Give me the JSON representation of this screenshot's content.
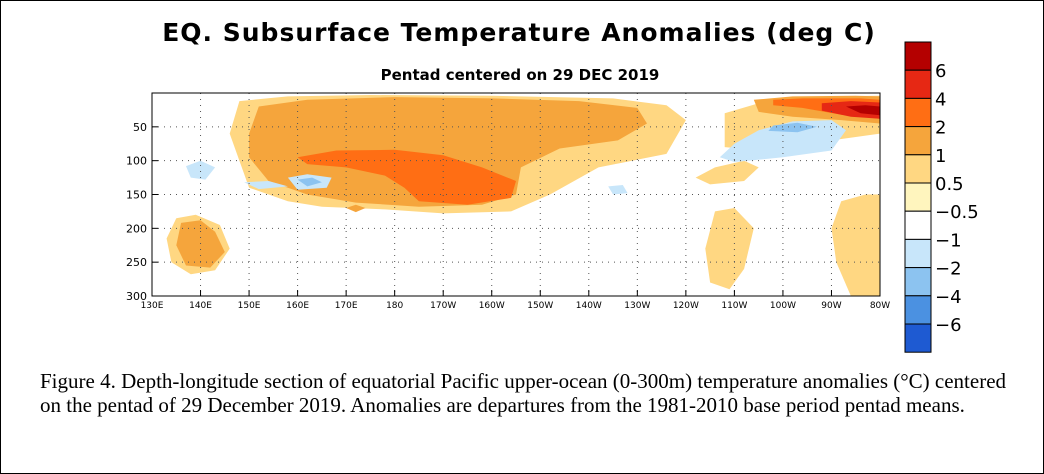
{
  "title": "EQ. Subsurface Temperature Anomalies (deg C)",
  "subtitle": "Pentad centered on 29 DEC 2019",
  "caption": "Figure 4. Depth-longitude section of equatorial Pacific upper-ocean (0-300m) temperature anomalies (°C) centered on the pentad of 29 December 2019. Anomalies are departures from the 1981-2010 base period pentad means.",
  "chart_data": {
    "type": "heatmap",
    "title": "EQ. Subsurface Temperature Anomalies (deg C)",
    "subtitle": "Pentad centered on 29 DEC 2019",
    "x_ticks": [
      "130E",
      "140E",
      "150E",
      "160E",
      "170E",
      "180",
      "170W",
      "160W",
      "150W",
      "140W",
      "130W",
      "120W",
      "110W",
      "100W",
      "90W",
      "80W"
    ],
    "x_tick_lon_east": [
      130,
      140,
      150,
      160,
      170,
      180,
      190,
      200,
      210,
      220,
      230,
      240,
      250,
      260,
      270,
      280
    ],
    "y_ticks": [
      "50",
      "100",
      "150",
      "200",
      "250",
      "300"
    ],
    "y_tick_values": [
      50,
      100,
      150,
      200,
      250,
      300
    ],
    "xlim_lon_east": [
      130,
      280
    ],
    "ylim_depth_m": [
      0,
      300
    ],
    "y_reversed": true,
    "grid": true,
    "legend_placement": "right",
    "colorbar": {
      "levels": [
        "6",
        "4",
        "2",
        "1",
        "0.5",
        "−0.5",
        "−1",
        "−2",
        "−4",
        "−6"
      ],
      "colors": [
        "#b40000",
        "#e62814",
        "#ff6e14",
        "#f5a53c",
        "#ffd782",
        "#fff5be",
        "#ffffff",
        "#c8e6fa",
        "#8cc3f0",
        "#4b91e1",
        "#1e5ad2"
      ]
    },
    "anomaly_regions": [
      {
        "lon_range": [
          148,
          255
        ],
        "depth_range": [
          5,
          175
        ],
        "level": "0.5 to 1",
        "note": "broad warm anomaly"
      },
      {
        "lon_range": [
          150,
          236
        ],
        "depth_range": [
          15,
          165
        ],
        "level": "1 to 2",
        "note": "warm anomaly west-central Pacific"
      },
      {
        "lon_range": [
          160,
          207
        ],
        "depth_range": [
          85,
          175
        ],
        "level": "2 to 4",
        "note": "warm core near thermocline"
      },
      {
        "lon_range": [
          134,
          143
        ],
        "depth_range": [
          185,
          265
        ],
        "level": "1 to 2",
        "note": "deep warm patch west"
      },
      {
        "lon_range": [
          254,
          280
        ],
        "depth_range": [
          0,
          50
        ],
        "level": "1 to 4",
        "note": "warm surface east"
      },
      {
        "lon_range": [
          268,
          280
        ],
        "depth_range": [
          0,
          40
        ],
        "level": "4 to 6",
        "note": "strong warm patch near 80W"
      },
      {
        "lon_range": [
          247,
          272
        ],
        "depth_range": [
          40,
          105
        ],
        "level": "-0.5 to -2",
        "note": "cool anomaly east"
      },
      {
        "lon_range": [
          137,
          145
        ],
        "depth_range": [
          100,
          135
        ],
        "level": "-0.5 to -1",
        "note": "small cool patch west"
      },
      {
        "lon_range": [
          158,
          168
        ],
        "depth_range": [
          120,
          145
        ],
        "level": "-0.5 to -1",
        "note": "small cool patch"
      },
      {
        "lon_range": [
          245,
          255
        ],
        "depth_range": [
          170,
          300
        ],
        "level": "0.5 to 1",
        "note": "deep warm streak east"
      },
      {
        "lon_range": [
          270,
          280
        ],
        "depth_range": [
          150,
          300
        ],
        "level": "0.5 to 1",
        "note": "deep warm streak far east"
      }
    ]
  }
}
